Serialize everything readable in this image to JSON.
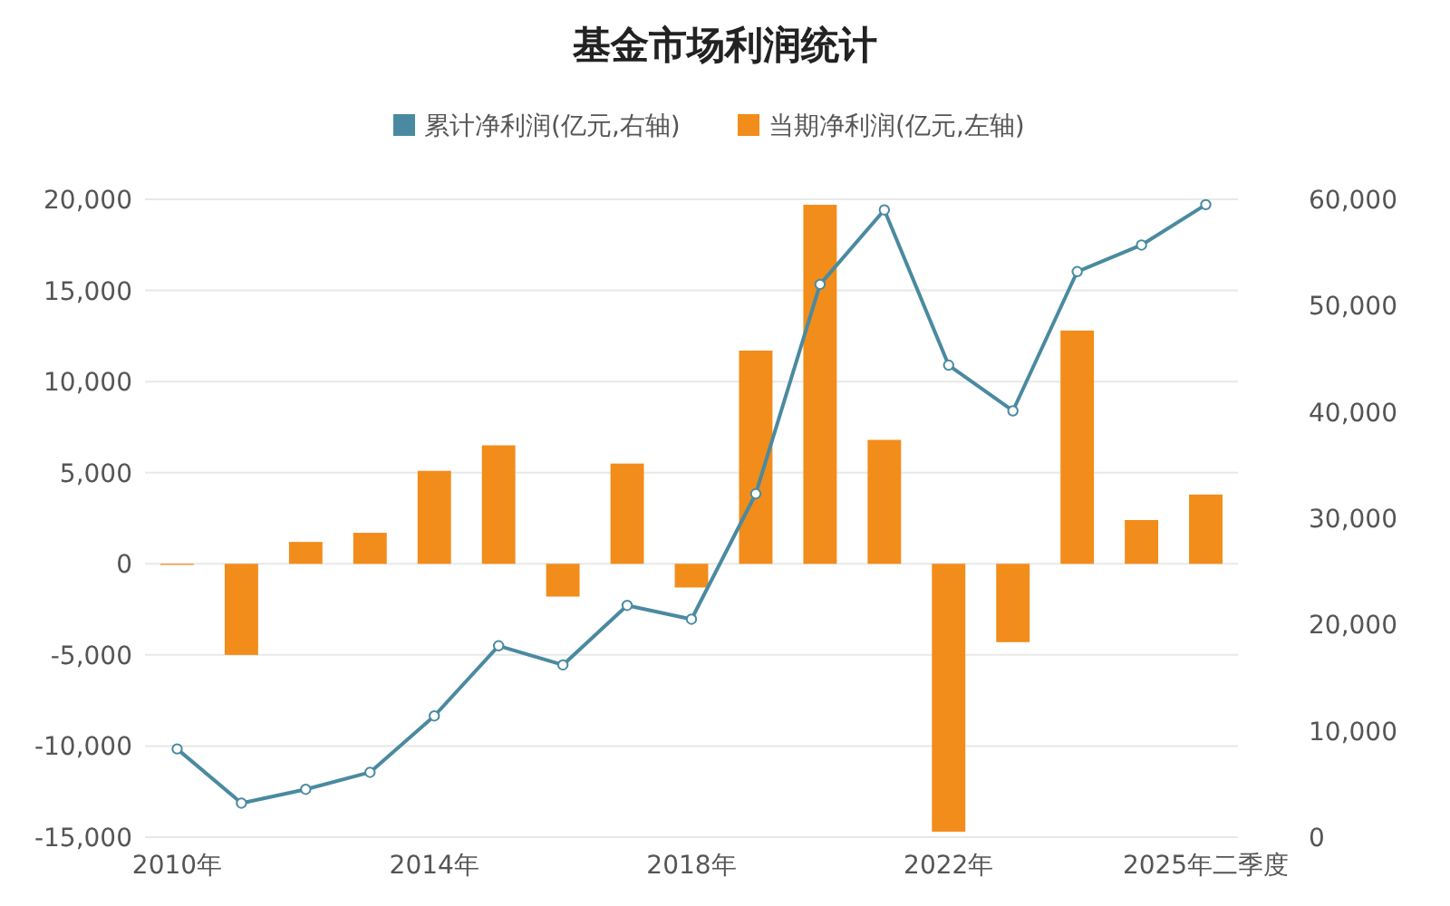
{
  "chart_data": {
    "type": "bar",
    "title": "基金市场利润统计",
    "categories": [
      "2010年",
      null,
      null,
      null,
      "2014年",
      null,
      null,
      null,
      "2018年",
      null,
      null,
      null,
      "2022年",
      null,
      null,
      null,
      "2025年二季度"
    ],
    "series": [
      {
        "name": "累计净利润(亿元,右轴)",
        "type": "line",
        "axis": "y2",
        "color": "#4a8aa0",
        "values": [
          8300,
          3200,
          4500,
          6100,
          11400,
          18000,
          16200,
          21800,
          20500,
          32300,
          52000,
          59000,
          44400,
          40100,
          53200,
          55700,
          59500
        ]
      },
      {
        "name": "当期净利润(亿元,左轴)",
        "color": "#f28c1b",
        "values": [
          0,
          -5000,
          1200,
          1700,
          5100,
          6500,
          -1800,
          5500,
          -1300,
          11700,
          19700,
          6800,
          -14700,
          -4300,
          12800,
          2400,
          3800
        ]
      }
    ],
    "ylim": [
      -15000,
      20000
    ],
    "yticks": [
      {
        "value": -15000,
        "label": "-15,000"
      },
      {
        "value": -10000,
        "label": "-10,000"
      },
      {
        "value": -5000,
        "label": "-5,000"
      },
      0,
      {
        "value": 5000,
        "label": "5,000"
      },
      {
        "value": 10000,
        "label": "10,000"
      },
      {
        "value": 15000,
        "label": "15,000"
      },
      {
        "value": 20000,
        "label": "20,000"
      }
    ],
    "y2lim": [
      0,
      60000
    ],
    "y2ticks": [
      0,
      {
        "value": 10000,
        "label": "10,000"
      },
      {
        "value": 20000,
        "label": "20,000"
      },
      {
        "value": 30000,
        "label": "30,000"
      },
      {
        "value": 40000,
        "label": "40,000"
      },
      {
        "value": 50000,
        "label": "50,000"
      },
      {
        "value": 60000,
        "label": "60,000"
      }
    ],
    "grid": "y",
    "legend": "top",
    "marker": "circle"
  }
}
